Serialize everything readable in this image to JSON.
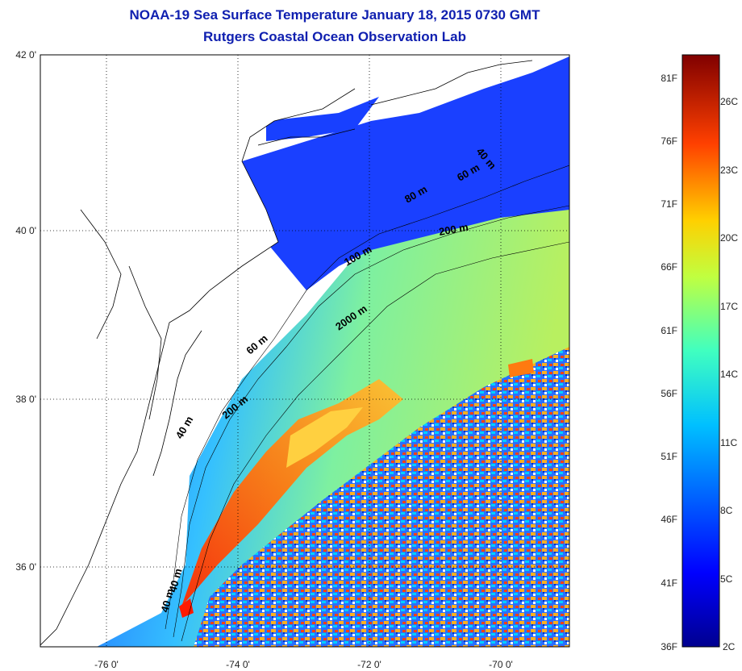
{
  "title": {
    "line1": "NOAA-19 Sea Surface Temperature January 18, 2015 0730 GMT",
    "line2": "Rutgers Coastal Ocean Observation Lab"
  },
  "map": {
    "lon_ticks": [
      "-76 0'",
      "-74 0'",
      "-72 0'",
      "-70 0'"
    ],
    "lat_ticks": [
      "42 0'",
      "40 0'",
      "38 0'",
      "36 0'"
    ],
    "isobaths": [
      "40 m",
      "60 m",
      "80 m",
      "100 m",
      "200 m",
      "2000 m"
    ],
    "isobath_labels": [
      "40 m",
      "200 m",
      "60 m",
      "2000 m",
      "100 m",
      "200 m",
      "80 m",
      "60 m",
      "40 m",
      "40 m",
      "40 m"
    ],
    "land_color": "#ffffff",
    "coastline_color": "#000000"
  },
  "colorbar": {
    "fahrenheit_ticks": [
      "36F",
      "41F",
      "46F",
      "51F",
      "56F",
      "61F",
      "66F",
      "71F",
      "76F",
      "81F"
    ],
    "celsius_ticks": [
      "2C",
      "5C",
      "8C",
      "11C",
      "14C",
      "17C",
      "20C",
      "23C",
      "26C"
    ],
    "colormap": [
      "#00008f",
      "#0000ff",
      "#0080ff",
      "#00ffff",
      "#80ff80",
      "#ffff00",
      "#ff8000",
      "#ff0000",
      "#800000"
    ]
  }
}
